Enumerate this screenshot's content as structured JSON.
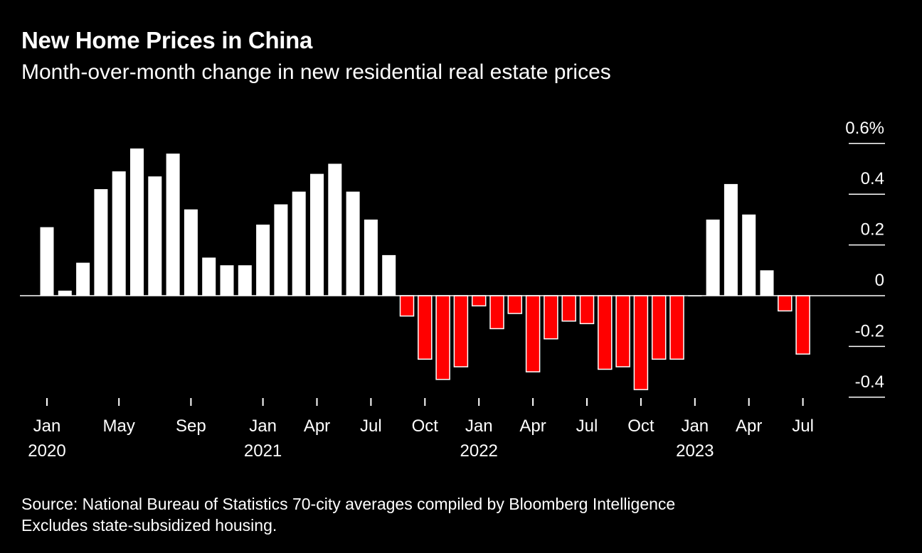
{
  "header": {
    "title": "New Home Prices in China",
    "subtitle": "Month-over-month change in new residential real estate prices"
  },
  "footer": {
    "source": "Source: National Bureau of Statistics 70-city averages compiled by Bloomberg Intelligence",
    "note": "Excludes state-subsidized housing."
  },
  "colors": {
    "positive": "#ffffff",
    "negative": "#ff0000",
    "background": "#000000"
  },
  "chart_data": {
    "type": "bar",
    "title": "New Home Prices in China",
    "subtitle": "Month-over-month change in new residential real estate prices",
    "ylim": [
      -0.4,
      0.6
    ],
    "y_ticks": [
      {
        "value": 0.6,
        "label": "0.6%"
      },
      {
        "value": 0.4,
        "label": "0.4"
      },
      {
        "value": 0.2,
        "label": "0.2"
      },
      {
        "value": 0,
        "label": "0"
      },
      {
        "value": -0.2,
        "label": "-0.2"
      },
      {
        "value": -0.4,
        "label": "-0.4"
      }
    ],
    "x_ticks": [
      {
        "month": "2020-01",
        "label": "Jan",
        "year": "2020"
      },
      {
        "month": "2020-05",
        "label": "May"
      },
      {
        "month": "2020-09",
        "label": "Sep"
      },
      {
        "month": "2021-01",
        "label": "Jan",
        "year": "2021"
      },
      {
        "month": "2021-04",
        "label": "Apr"
      },
      {
        "month": "2021-07",
        "label": "Jul"
      },
      {
        "month": "2021-10",
        "label": "Oct"
      },
      {
        "month": "2022-01",
        "label": "Jan",
        "year": "2022"
      },
      {
        "month": "2022-04",
        "label": "Apr"
      },
      {
        "month": "2022-07",
        "label": "Jul"
      },
      {
        "month": "2022-10",
        "label": "Oct"
      },
      {
        "month": "2023-01",
        "label": "Jan",
        "year": "2023"
      },
      {
        "month": "2023-04",
        "label": "Apr"
      },
      {
        "month": "2023-07",
        "label": "Jul"
      }
    ],
    "categories": [
      "2020-01",
      "2020-02",
      "2020-03",
      "2020-04",
      "2020-05",
      "2020-06",
      "2020-07",
      "2020-08",
      "2020-09",
      "2020-10",
      "2020-11",
      "2020-12",
      "2021-01",
      "2021-02",
      "2021-03",
      "2021-04",
      "2021-05",
      "2021-06",
      "2021-07",
      "2021-08",
      "2021-09",
      "2021-10",
      "2021-11",
      "2021-12",
      "2022-01",
      "2022-02",
      "2022-03",
      "2022-04",
      "2022-05",
      "2022-06",
      "2022-07",
      "2022-08",
      "2022-09",
      "2022-10",
      "2022-11",
      "2022-12",
      "2023-01",
      "2023-02",
      "2023-03",
      "2023-04",
      "2023-05",
      "2023-06",
      "2023-07"
    ],
    "values": [
      0.27,
      0.02,
      0.13,
      0.42,
      0.49,
      0.58,
      0.47,
      0.56,
      0.34,
      0.15,
      0.12,
      0.12,
      0.28,
      0.36,
      0.41,
      0.48,
      0.52,
      0.41,
      0.3,
      0.16,
      -0.08,
      -0.25,
      -0.33,
      -0.28,
      -0.04,
      -0.13,
      -0.07,
      -0.3,
      -0.17,
      -0.1,
      -0.11,
      -0.29,
      -0.28,
      -0.37,
      -0.25,
      -0.25,
      0.0,
      0.3,
      0.44,
      0.32,
      0.1,
      -0.06,
      -0.23
    ]
  }
}
